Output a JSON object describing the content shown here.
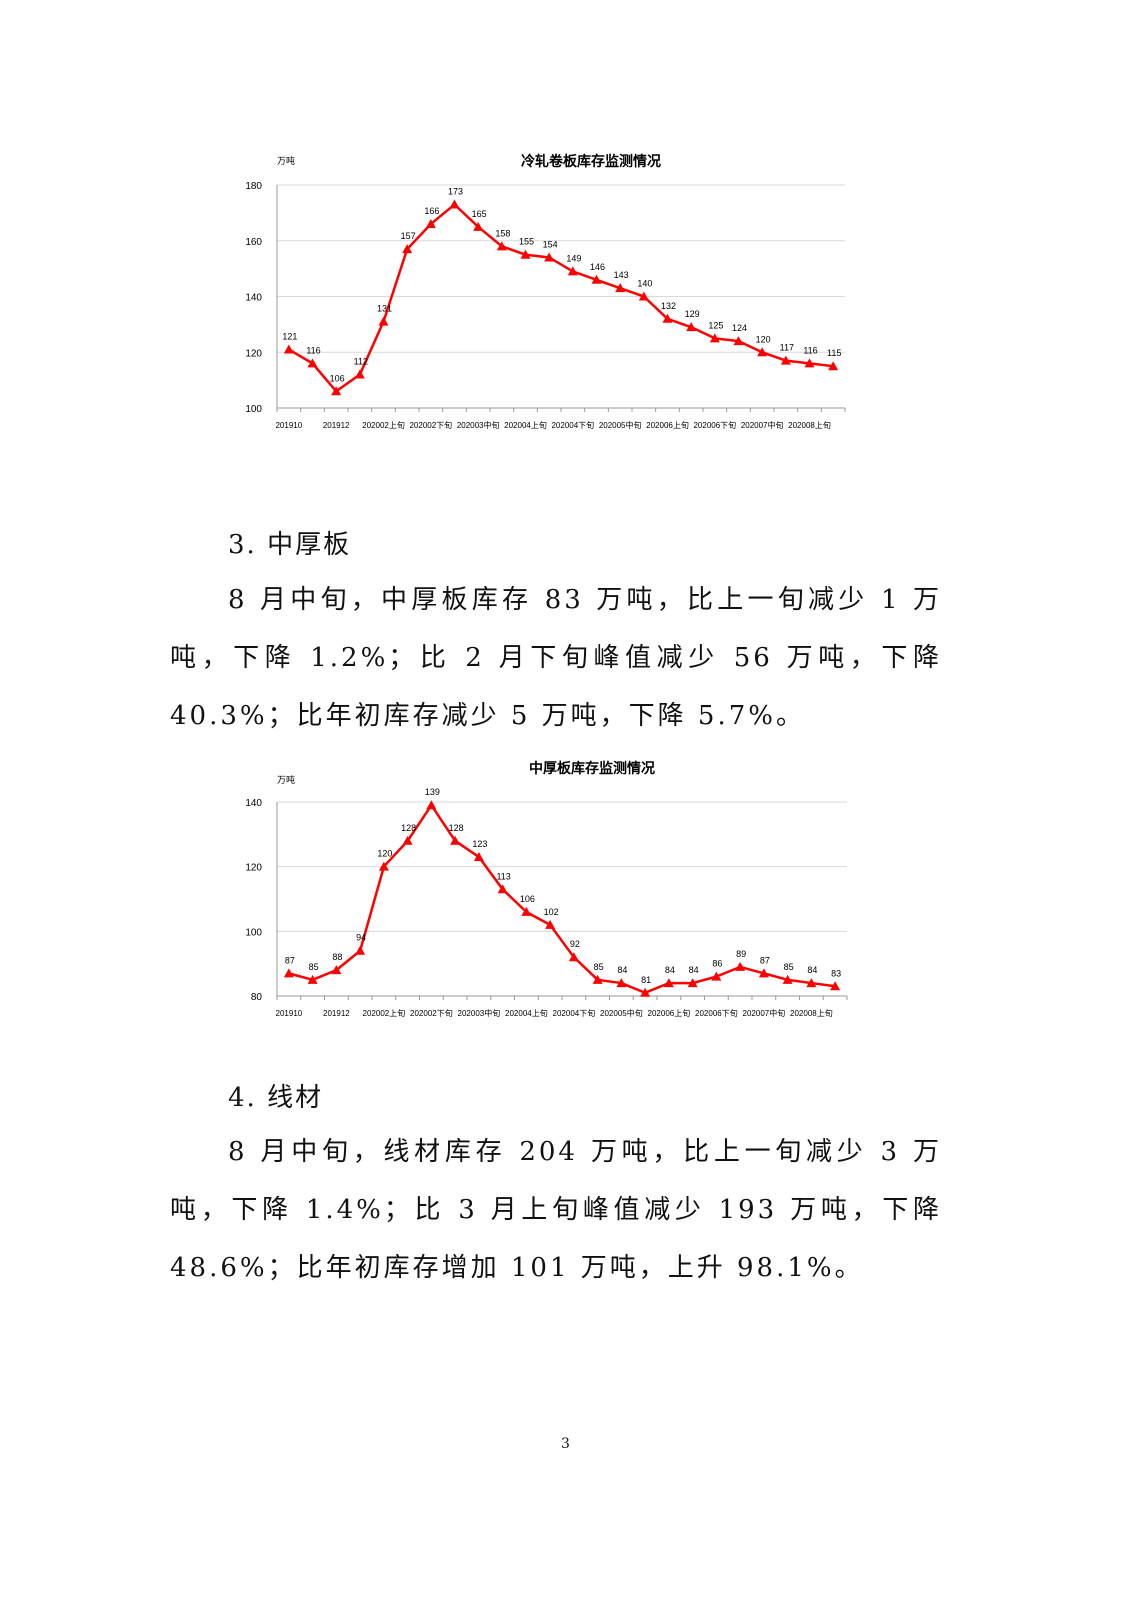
{
  "chart_data": [
    {
      "type": "line",
      "title": "冷轧卷板库存监测情况",
      "ylabel": "万吨",
      "ylim": [
        100,
        180
      ],
      "yticks": [
        100,
        120,
        140,
        160,
        180
      ],
      "grid": true,
      "x_tick_labels": [
        "201910",
        "201912",
        "202002上旬",
        "202002下旬",
        "202003中旬",
        "202004上旬",
        "202004下旬",
        "202005中旬",
        "202006上旬",
        "202006下旬",
        "202007中旬",
        "202008上旬"
      ],
      "values": [
        121,
        116,
        106,
        112,
        131,
        157,
        166,
        173,
        165,
        158,
        155,
        154,
        149,
        146,
        143,
        140,
        132,
        129,
        125,
        124,
        120,
        117,
        116,
        115
      ],
      "color": "#ff0000"
    },
    {
      "type": "line",
      "title": "中厚板库存监测情况",
      "ylabel": "万吨",
      "ylim": [
        80,
        140
      ],
      "yticks": [
        80,
        100,
        120,
        140
      ],
      "grid": true,
      "x_tick_labels": [
        "201910",
        "201912",
        "202002上旬",
        "202002下旬",
        "202003中旬",
        "202004上旬",
        "202004下旬",
        "202005中旬",
        "202006上旬",
        "202006下旬",
        "202007中旬",
        "202008上旬"
      ],
      "values": [
        87,
        85,
        88,
        94,
        120,
        128,
        139,
        128,
        123,
        113,
        106,
        102,
        92,
        85,
        84,
        81,
        84,
        84,
        86,
        89,
        87,
        85,
        84,
        83
      ],
      "color": "#ff0000"
    }
  ],
  "section3": {
    "heading": "3. 中厚板",
    "text": "8 月中旬，中厚板库存 83 万吨，比上一旬减少 1 万吨，下降 1.2%；比 2 月下旬峰值减少 56 万吨，下降 40.3%；比年初库存减少 5 万吨，下降 5.7%。"
  },
  "section4": {
    "heading": "4. 线材",
    "text": "8 月中旬，线材库存 204 万吨，比上一旬减少 3 万吨，下降 1.4%；比 3 月上旬峰值减少 193 万吨，下降 48.6%；比年初库存增加 101 万吨，上升 98.1%。"
  },
  "page_number": "3"
}
